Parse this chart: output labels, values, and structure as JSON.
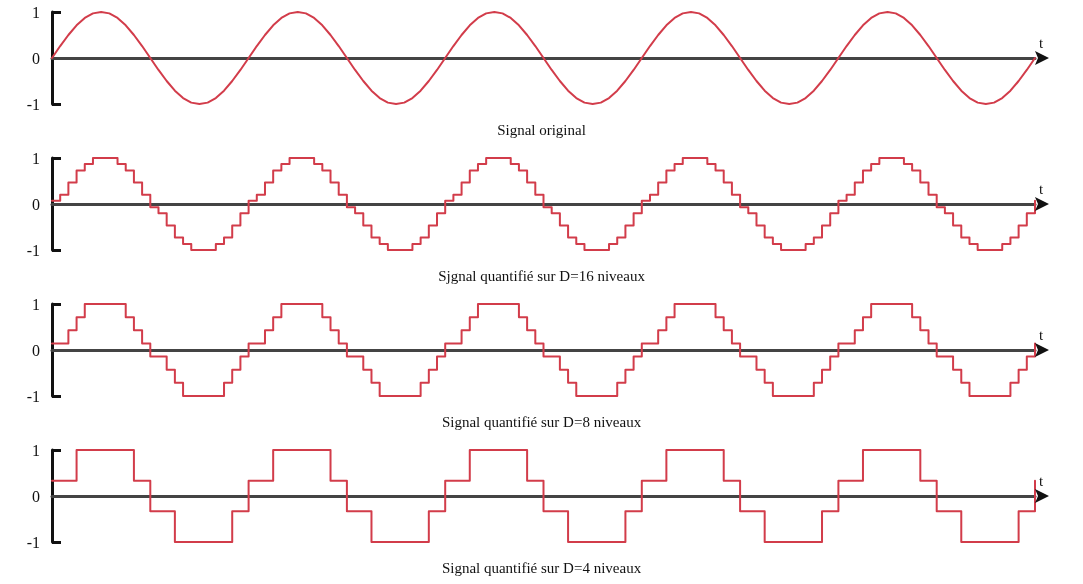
{
  "chart_data": [
    {
      "type": "line",
      "title": "Signal original",
      "xlabel": "t",
      "tick_labels": "y",
      "color": "#d23c4a",
      "ylim": [
        -1,
        1
      ],
      "yticks": [
        -1,
        0,
        1
      ],
      "categories": [
        null,
        null,
        null,
        null,
        null,
        null,
        null,
        null,
        null,
        null,
        null,
        null,
        null,
        null,
        null,
        null,
        null,
        null,
        null,
        null,
        null,
        null,
        null,
        null,
        null,
        null,
        null,
        null,
        null,
        null,
        null,
        null,
        null,
        null,
        null,
        null,
        null,
        null,
        null,
        null,
        null,
        null,
        null,
        null,
        null,
        null,
        null,
        null,
        null,
        null,
        null,
        null,
        null,
        null,
        null,
        null,
        null,
        null,
        null,
        null,
        null,
        null,
        null,
        null,
        null,
        null,
        null,
        null,
        null,
        null,
        null,
        null,
        null,
        null,
        null,
        null,
        null,
        null,
        null,
        null,
        null,
        null,
        null,
        null,
        null,
        null,
        null,
        null,
        null,
        null,
        null,
        null,
        null,
        null,
        null,
        null,
        null,
        null,
        null,
        null,
        null,
        null,
        null,
        null,
        null,
        null,
        null,
        null,
        null,
        null,
        null,
        null,
        null,
        null,
        null,
        null,
        null,
        null,
        null,
        null,
        null
      ],
      "values": [
        0,
        0.26,
        0.5,
        0.71,
        0.87,
        0.97,
        1,
        0.97,
        0.87,
        0.71,
        0.5,
        0.26,
        0,
        -0.26,
        -0.5,
        -0.71,
        -0.87,
        -0.97,
        -1,
        -0.97,
        -0.87,
        -0.71,
        -0.5,
        -0.26,
        0,
        0.26,
        0.5,
        0.71,
        0.87,
        0.97,
        1,
        0.97,
        0.87,
        0.71,
        0.5,
        0.26,
        0,
        -0.26,
        -0.5,
        -0.71,
        -0.87,
        -0.97,
        -1,
        -0.97,
        -0.87,
        -0.71,
        -0.5,
        -0.26,
        0,
        0.26,
        0.5,
        0.71,
        0.87,
        0.97,
        1,
        0.97,
        0.87,
        0.71,
        0.5,
        0.26,
        0,
        -0.26,
        -0.5,
        -0.71,
        -0.87,
        -0.97,
        -1,
        -0.97,
        -0.87,
        -0.71,
        -0.5,
        -0.26,
        0,
        0.26,
        0.5,
        0.71,
        0.87,
        0.97,
        1,
        0.97,
        0.87,
        0.71,
        0.5,
        0.26,
        0,
        -0.26,
        -0.5,
        -0.71,
        -0.87,
        -0.97,
        -1,
        -0.97,
        -0.87,
        -0.71,
        -0.5,
        -0.26,
        0,
        0.26,
        0.5,
        0.71,
        0.87,
        0.97,
        1,
        0.97,
        0.87,
        0.71,
        0.5,
        0.26,
        0,
        -0.26,
        -0.5,
        -0.71,
        -0.87,
        -0.97,
        -1,
        -0.97,
        -0.87,
        -0.71,
        -0.5,
        -0.26,
        0
      ]
    },
    {
      "type": "step",
      "title": "Sjgnal quantifié sur D=16 niveaux",
      "xlabel": "t",
      "tick_labels": "y",
      "color": "#d23c4a",
      "ylim": [
        -1,
        1
      ],
      "yticks": [
        -1,
        0,
        1
      ],
      "categories": [
        null,
        null,
        null,
        null,
        null,
        null,
        null,
        null,
        null,
        null,
        null,
        null,
        null,
        null,
        null,
        null,
        null,
        null,
        null,
        null,
        null,
        null,
        null,
        null,
        null,
        null,
        null,
        null,
        null,
        null,
        null,
        null,
        null,
        null,
        null,
        null,
        null,
        null,
        null,
        null,
        null,
        null,
        null,
        null,
        null,
        null,
        null,
        null,
        null,
        null,
        null,
        null,
        null,
        null,
        null,
        null,
        null,
        null,
        null,
        null,
        null,
        null,
        null,
        null,
        null,
        null,
        null,
        null,
        null,
        null,
        null,
        null,
        null,
        null,
        null,
        null,
        null,
        null,
        null,
        null,
        null,
        null,
        null,
        null,
        null,
        null,
        null,
        null,
        null,
        null,
        null,
        null,
        null,
        null,
        null,
        null,
        null,
        null,
        null,
        null,
        null,
        null,
        null,
        null,
        null,
        null,
        null,
        null,
        null,
        null,
        null,
        null,
        null,
        null,
        null,
        null,
        null,
        null,
        null,
        null,
        null
      ],
      "values": [
        0.07,
        0.2,
        0.47,
        0.73,
        0.87,
        1,
        1,
        1,
        0.87,
        0.73,
        0.47,
        0.2,
        -0.07,
        -0.2,
        -0.47,
        -0.73,
        -0.87,
        -1,
        -1,
        -1,
        -0.87,
        -0.73,
        -0.47,
        -0.2,
        0.07,
        0.2,
        0.47,
        0.73,
        0.87,
        1,
        1,
        1,
        0.87,
        0.73,
        0.47,
        0.2,
        -0.07,
        -0.2,
        -0.47,
        -0.73,
        -0.87,
        -1,
        -1,
        -1,
        -0.87,
        -0.73,
        -0.47,
        -0.2,
        0.07,
        0.2,
        0.47,
        0.73,
        0.87,
        1,
        1,
        1,
        0.87,
        0.73,
        0.47,
        0.2,
        -0.07,
        -0.2,
        -0.47,
        -0.73,
        -0.87,
        -1,
        -1,
        -1,
        -0.87,
        -0.73,
        -0.47,
        -0.2,
        0.07,
        0.2,
        0.47,
        0.73,
        0.87,
        1,
        1,
        1,
        0.87,
        0.73,
        0.47,
        0.2,
        -0.07,
        -0.2,
        -0.47,
        -0.73,
        -0.87,
        -1,
        -1,
        -1,
        -0.87,
        -0.73,
        -0.47,
        -0.2,
        0.07,
        0.2,
        0.47,
        0.73,
        0.87,
        1,
        1,
        1,
        0.87,
        0.73,
        0.47,
        0.2,
        -0.07,
        -0.2,
        -0.47,
        -0.73,
        -0.87,
        -1,
        -1,
        -1,
        -0.87,
        -0.73,
        -0.47,
        -0.2,
        0.07
      ]
    },
    {
      "type": "step",
      "title": "Signal quantifié sur D=8 niveaux",
      "xlabel": "t",
      "tick_labels": "y",
      "color": "#d23c4a",
      "ylim": [
        -1,
        1
      ],
      "yticks": [
        -1,
        0,
        1
      ],
      "categories": [
        null,
        null,
        null,
        null,
        null,
        null,
        null,
        null,
        null,
        null,
        null,
        null,
        null,
        null,
        null,
        null,
        null,
        null,
        null,
        null,
        null,
        null,
        null,
        null,
        null,
        null,
        null,
        null,
        null,
        null,
        null,
        null,
        null,
        null,
        null,
        null,
        null,
        null,
        null,
        null,
        null,
        null,
        null,
        null,
        null,
        null,
        null,
        null,
        null,
        null,
        null,
        null,
        null,
        null,
        null,
        null,
        null,
        null,
        null,
        null,
        null,
        null,
        null,
        null,
        null,
        null,
        null,
        null,
        null,
        null,
        null,
        null,
        null,
        null,
        null,
        null,
        null,
        null,
        null,
        null,
        null,
        null,
        null,
        null,
        null,
        null,
        null,
        null,
        null,
        null,
        null,
        null,
        null,
        null,
        null,
        null,
        null,
        null,
        null,
        null,
        null,
        null,
        null,
        null,
        null,
        null,
        null,
        null,
        null,
        null,
        null,
        null,
        null,
        null,
        null,
        null,
        null,
        null,
        null,
        null,
        null
      ],
      "values": [
        0.14,
        0.14,
        0.43,
        0.71,
        1,
        1,
        1,
        1,
        1,
        0.71,
        0.43,
        0.14,
        -0.14,
        -0.14,
        -0.43,
        -0.71,
        -1,
        -1,
        -1,
        -1,
        -1,
        -0.71,
        -0.43,
        -0.14,
        0.14,
        0.14,
        0.43,
        0.71,
        1,
        1,
        1,
        1,
        1,
        0.71,
        0.43,
        0.14,
        -0.14,
        -0.14,
        -0.43,
        -0.71,
        -1,
        -1,
        -1,
        -1,
        -1,
        -0.71,
        -0.43,
        -0.14,
        0.14,
        0.14,
        0.43,
        0.71,
        1,
        1,
        1,
        1,
        1,
        0.71,
        0.43,
        0.14,
        -0.14,
        -0.14,
        -0.43,
        -0.71,
        -1,
        -1,
        -1,
        -1,
        -1,
        -0.71,
        -0.43,
        -0.14,
        0.14,
        0.14,
        0.43,
        0.71,
        1,
        1,
        1,
        1,
        1,
        0.71,
        0.43,
        0.14,
        -0.14,
        -0.14,
        -0.43,
        -0.71,
        -1,
        -1,
        -1,
        -1,
        -1,
        -0.71,
        -0.43,
        -0.14,
        0.14,
        0.14,
        0.43,
        0.71,
        1,
        1,
        1,
        1,
        1,
        0.71,
        0.43,
        0.14,
        -0.14,
        -0.14,
        -0.43,
        -0.71,
        -1,
        -1,
        -1,
        -1,
        -1,
        -0.71,
        -0.43,
        -0.14,
        0.14
      ]
    },
    {
      "type": "step",
      "title": "Signal quantifié sur D=4 niveaux",
      "xlabel": "t",
      "tick_labels": "y",
      "color": "#d23c4a",
      "ylim": [
        -1,
        1
      ],
      "yticks": [
        -1,
        0,
        1
      ],
      "categories": [
        null,
        null,
        null,
        null,
        null,
        null,
        null,
        null,
        null,
        null,
        null,
        null,
        null,
        null,
        null,
        null,
        null,
        null,
        null,
        null,
        null,
        null,
        null,
        null,
        null,
        null,
        null,
        null,
        null,
        null,
        null,
        null,
        null,
        null,
        null,
        null,
        null,
        null,
        null,
        null,
        null,
        null,
        null,
        null,
        null,
        null,
        null,
        null,
        null,
        null,
        null,
        null,
        null,
        null,
        null,
        null,
        null,
        null,
        null,
        null,
        null,
        null,
        null,
        null,
        null,
        null,
        null,
        null,
        null,
        null,
        null,
        null,
        null,
        null,
        null,
        null,
        null,
        null,
        null,
        null,
        null,
        null,
        null,
        null,
        null,
        null,
        null,
        null,
        null,
        null,
        null,
        null,
        null,
        null,
        null,
        null,
        null,
        null,
        null,
        null,
        null,
        null,
        null,
        null,
        null,
        null,
        null,
        null,
        null,
        null,
        null,
        null,
        null,
        null,
        null,
        null,
        null,
        null,
        null,
        null,
        null
      ],
      "values": [
        0.33,
        0.33,
        0.33,
        1,
        1,
        1,
        1,
        1,
        1,
        1,
        0.33,
        0.33,
        -0.33,
        -0.33,
        -0.33,
        -1,
        -1,
        -1,
        -1,
        -1,
        -1,
        -1,
        -0.33,
        -0.33,
        0.33,
        0.33,
        0.33,
        1,
        1,
        1,
        1,
        1,
        1,
        1,
        0.33,
        0.33,
        -0.33,
        -0.33,
        -0.33,
        -1,
        -1,
        -1,
        -1,
        -1,
        -1,
        -1,
        -0.33,
        -0.33,
        0.33,
        0.33,
        0.33,
        1,
        1,
        1,
        1,
        1,
        1,
        1,
        0.33,
        0.33,
        -0.33,
        -0.33,
        -0.33,
        -1,
        -1,
        -1,
        -1,
        -1,
        -1,
        -1,
        -0.33,
        -0.33,
        0.33,
        0.33,
        0.33,
        1,
        1,
        1,
        1,
        1,
        1,
        1,
        0.33,
        0.33,
        -0.33,
        -0.33,
        -0.33,
        -1,
        -1,
        -1,
        -1,
        -1,
        -1,
        -1,
        -0.33,
        -0.33,
        0.33,
        0.33,
        0.33,
        1,
        1,
        1,
        1,
        1,
        1,
        1,
        0.33,
        0.33,
        -0.33,
        -0.33,
        -0.33,
        -1,
        -1,
        -1,
        -1,
        -1,
        -1,
        -1,
        -0.33,
        -0.33,
        0.33
      ]
    }
  ]
}
